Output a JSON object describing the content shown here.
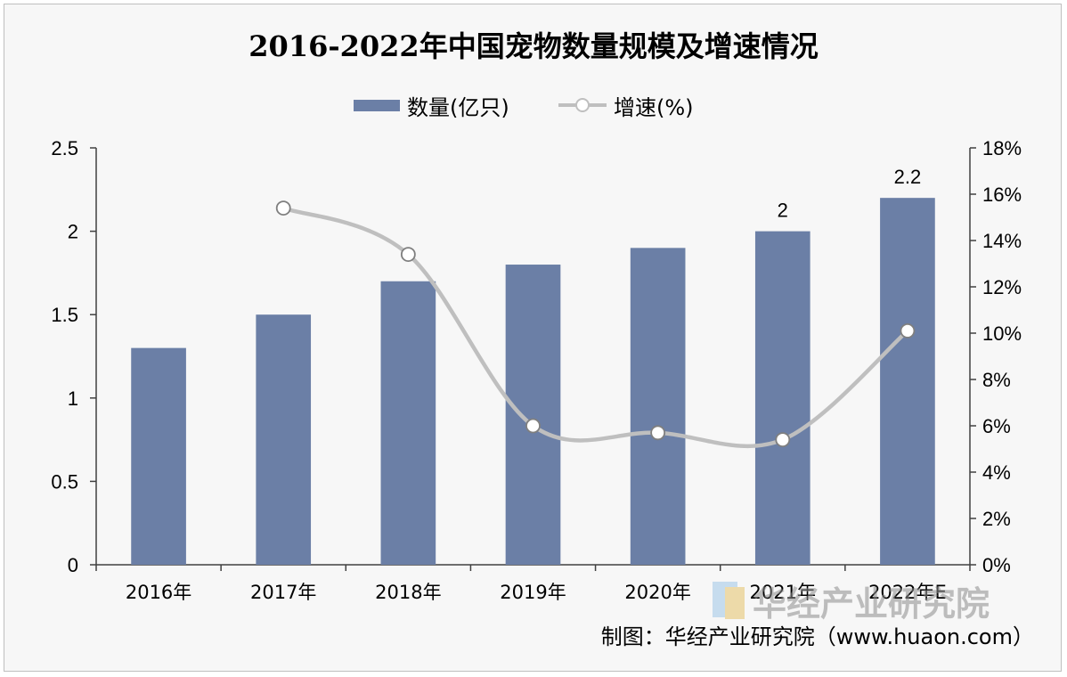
{
  "chart_data": {
    "type": "bar",
    "title": "2016-2022年中国宠物数量规模及增速情况",
    "categories": [
      "2016年",
      "2017年",
      "2018年",
      "2019年",
      "2020年",
      "2021年",
      "2022年E"
    ],
    "series": [
      {
        "name": "数量(亿只)",
        "type": "bar",
        "axis": "left",
        "values": [
          1.3,
          1.5,
          1.7,
          1.8,
          1.9,
          2.0,
          2.2
        ],
        "color": "#6b7fa6"
      },
      {
        "name": "增速(%)",
        "type": "line",
        "axis": "right",
        "values": [
          null,
          15.4,
          13.4,
          6.0,
          5.7,
          5.4,
          10.1
        ],
        "color": "#bfbfbf"
      }
    ],
    "data_labels": [
      {
        "category": "2021年",
        "text": "2"
      },
      {
        "category": "2022年E",
        "text": "2.2"
      }
    ],
    "y_left": {
      "ylim": [
        0,
        2.5
      ],
      "ticks": [
        0,
        0.5,
        1,
        1.5,
        2,
        2.5
      ],
      "tick_labels": [
        "0",
        "0.5",
        "1",
        "1.5",
        "2",
        "2.5"
      ]
    },
    "y_right": {
      "ylim": [
        0,
        18
      ],
      "ticks": [
        0,
        2,
        4,
        6,
        8,
        10,
        12,
        14,
        16,
        18
      ],
      "tick_labels": [
        "0%",
        "2%",
        "4%",
        "6%",
        "8%",
        "10%",
        "12%",
        "14%",
        "16%",
        "18%"
      ]
    },
    "grid": false,
    "legend_position": "top-center"
  },
  "source_note": "制图：华经产业研究院（www.huaon.com）",
  "watermark_text": "华经产业研究院",
  "colors": {
    "bar": "#6b7fa6",
    "line": "#bfbfbf",
    "axis": "#404040",
    "text": "#000000"
  }
}
